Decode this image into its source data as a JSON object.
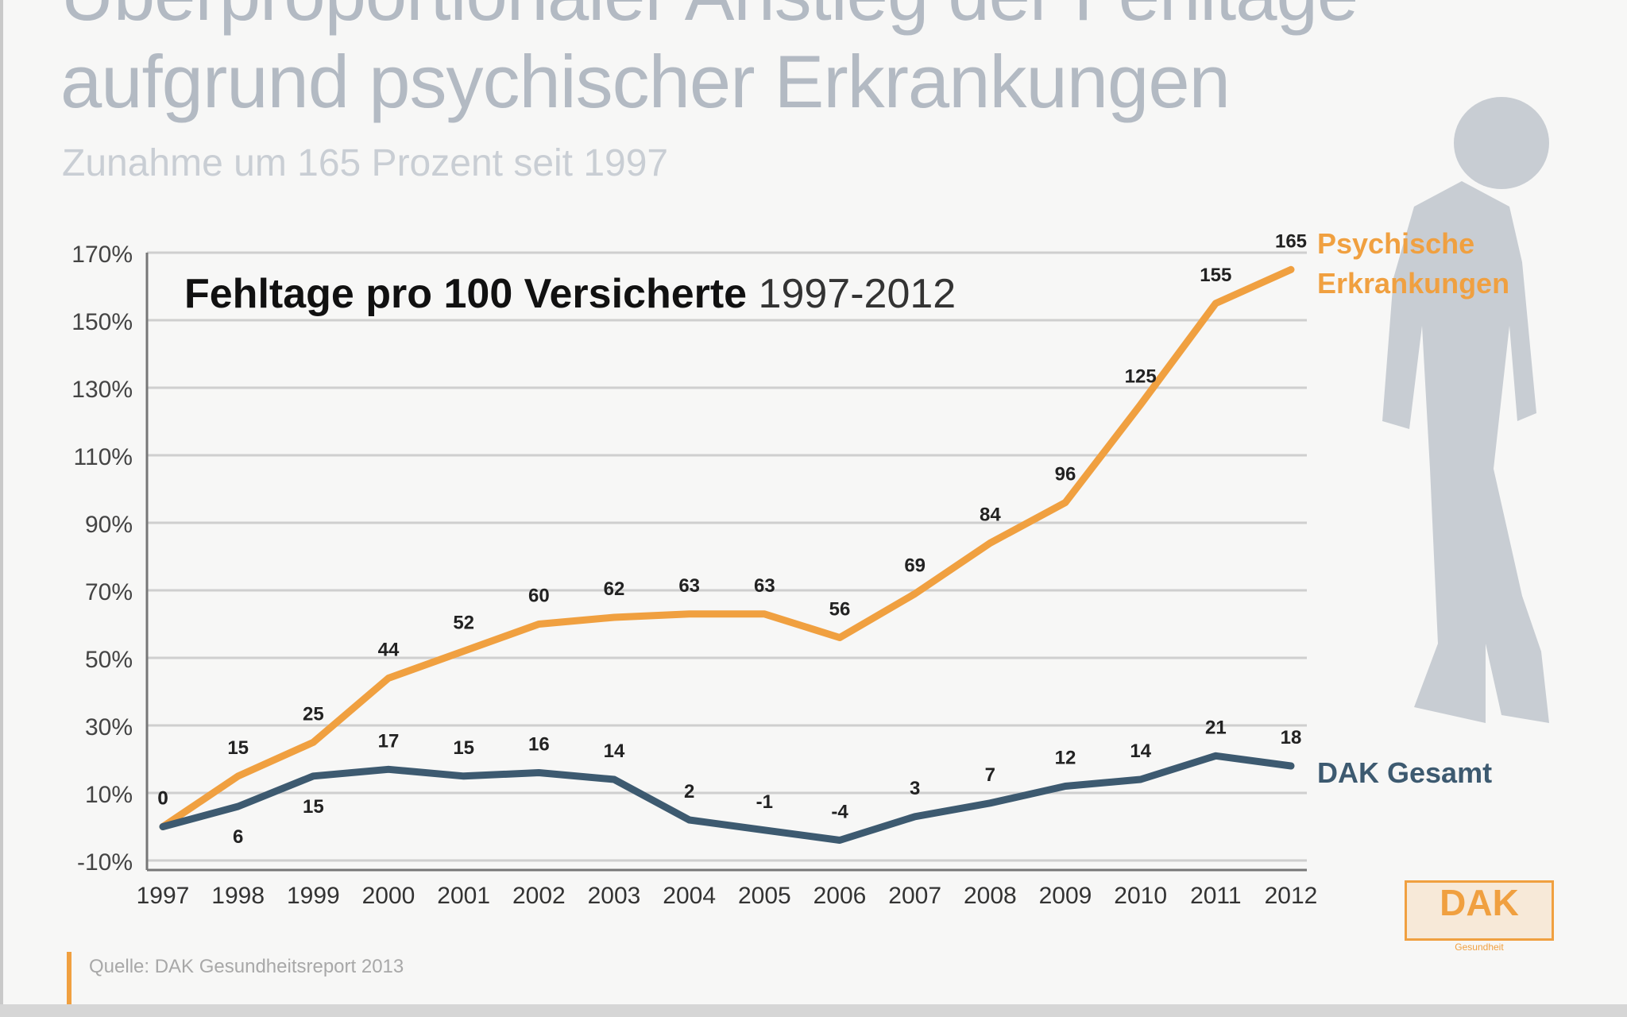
{
  "header": {
    "title_line1": "Überproportionaler Anstieg der Fehltage",
    "title_line2": "aufgrund psychischer Erkrankungen",
    "subtitle": "Zunahme um 165 Prozent seit 1997"
  },
  "source": "Quelle: DAK Gesundheitsreport 2013",
  "logo": {
    "text": "DAK",
    "sub": "Gesundheit"
  },
  "chart_data": {
    "type": "line",
    "inner_title_bold": "Fehltage pro 100 Versicherte",
    "inner_title_years": "1997-2012",
    "categories": [
      "1997",
      "1998",
      "1999",
      "2000",
      "2001",
      "2002",
      "2003",
      "2004",
      "2005",
      "2006",
      "2007",
      "2008",
      "2009",
      "2010",
      "2011",
      "2012"
    ],
    "yticks": [
      "-10%",
      "10%",
      "30%",
      "50%",
      "70%",
      "90%",
      "110%",
      "130%",
      "150%",
      "170%"
    ],
    "ytick_values": [
      -10,
      10,
      30,
      50,
      70,
      90,
      110,
      130,
      150,
      170
    ],
    "ylim": [
      -10,
      170
    ],
    "grid": true,
    "series": [
      {
        "name": "Psychische Erkrankungen",
        "color": "#f0a040",
        "values": [
          0,
          15,
          25,
          44,
          52,
          60,
          62,
          63,
          63,
          56,
          69,
          84,
          96,
          125,
          155,
          165
        ]
      },
      {
        "name": "DAK Gesamt",
        "color": "#3d5a70",
        "values": [
          0,
          6,
          15,
          17,
          15,
          16,
          14,
          2,
          -1,
          -4,
          3,
          7,
          12,
          14,
          21,
          18
        ]
      }
    ]
  }
}
